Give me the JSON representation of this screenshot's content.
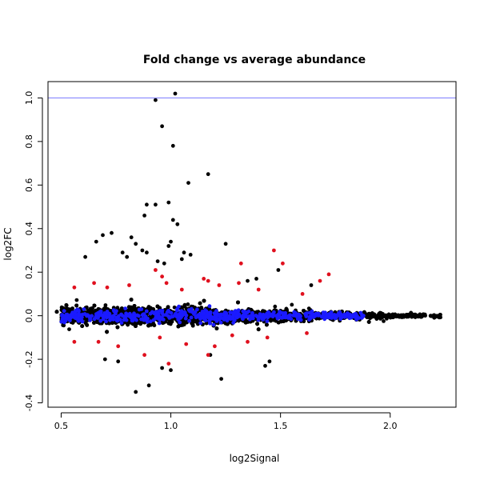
{
  "chart_data": {
    "type": "scatter",
    "title": "Fold change vs average abundance",
    "xlabel": "log2Signal",
    "ylabel": "log2FC",
    "xlim": [
      0.44,
      2.3
    ],
    "ylim": [
      -0.42,
      1.075
    ],
    "xticks": [
      0.5,
      1.0,
      1.5,
      2.0
    ],
    "xtick_labels": [
      "0.5",
      "1.0",
      "1.5",
      "2.0"
    ],
    "yticks": [
      -0.4,
      -0.2,
      0.0,
      0.2,
      0.4,
      0.6,
      0.8,
      1.0
    ],
    "ytick_labels": [
      "-0.4",
      "-0.2",
      "0.0",
      "0.2",
      "0.4",
      "0.6",
      "0.8",
      "1.0"
    ],
    "grid": false,
    "reference_line": {
      "y": 1.0,
      "color": "#7777ff"
    },
    "colors": {
      "background_points": "#000000",
      "highlight_blue": "#1a1aff",
      "highlight_red": "#e0101e"
    },
    "series": [
      {
        "color": "#000000",
        "points": [
          [
            0.93,
            0.99
          ],
          [
            1.02,
            1.02
          ],
          [
            0.96,
            0.87
          ],
          [
            1.01,
            0.78
          ],
          [
            1.17,
            0.65
          ],
          [
            1.08,
            0.61
          ],
          [
            0.99,
            0.52
          ],
          [
            0.89,
            0.51
          ],
          [
            0.93,
            0.51
          ],
          [
            0.88,
            0.46
          ],
          [
            1.01,
            0.44
          ],
          [
            1.03,
            0.42
          ],
          [
            0.73,
            0.38
          ],
          [
            0.69,
            0.37
          ],
          [
            0.82,
            0.36
          ],
          [
            0.66,
            0.34
          ],
          [
            0.84,
            0.33
          ],
          [
            1.0,
            0.34
          ],
          [
            0.99,
            0.32
          ],
          [
            1.25,
            0.33
          ],
          [
            0.89,
            0.29
          ],
          [
            0.87,
            0.3
          ],
          [
            1.06,
            0.29
          ],
          [
            1.09,
            0.28
          ],
          [
            0.61,
            0.27
          ],
          [
            1.05,
            0.26
          ],
          [
            0.94,
            0.25
          ],
          [
            0.97,
            0.24
          ],
          [
            0.78,
            0.29
          ],
          [
            0.8,
            0.27
          ],
          [
            1.23,
            -0.29
          ],
          [
            0.9,
            -0.32
          ],
          [
            0.84,
            -0.35
          ],
          [
            1.45,
            -0.21
          ],
          [
            1.43,
            -0.23
          ],
          [
            0.96,
            -0.24
          ],
          [
            1.0,
            -0.25
          ],
          [
            0.76,
            -0.21
          ],
          [
            0.7,
            -0.2
          ],
          [
            1.18,
            -0.18
          ],
          [
            1.39,
            0.17
          ],
          [
            1.49,
            0.21
          ],
          [
            1.35,
            0.16
          ],
          [
            1.64,
            0.14
          ]
        ]
      },
      {
        "color": "#1a1aff",
        "points": []
      },
      {
        "color": "#e0101e",
        "points": [
          [
            1.47,
            0.3
          ],
          [
            1.51,
            0.24
          ],
          [
            1.32,
            0.24
          ],
          [
            1.72,
            0.19
          ],
          [
            1.68,
            0.16
          ],
          [
            0.93,
            0.21
          ],
          [
            1.17,
            0.16
          ],
          [
            1.15,
            0.17
          ],
          [
            1.22,
            0.14
          ],
          [
            1.31,
            0.15
          ],
          [
            0.98,
            0.15
          ],
          [
            0.96,
            0.18
          ],
          [
            0.65,
            0.15
          ],
          [
            0.71,
            0.13
          ],
          [
            0.56,
            0.13
          ],
          [
            0.81,
            0.14
          ],
          [
            1.05,
            0.12
          ],
          [
            1.4,
            0.12
          ],
          [
            1.6,
            0.1
          ],
          [
            0.88,
            -0.18
          ],
          [
            0.99,
            -0.22
          ],
          [
            1.07,
            -0.13
          ],
          [
            1.2,
            -0.14
          ],
          [
            1.35,
            -0.12
          ],
          [
            0.67,
            -0.12
          ],
          [
            0.56,
            -0.12
          ],
          [
            0.76,
            -0.14
          ],
          [
            1.17,
            -0.18
          ],
          [
            1.44,
            -0.1
          ],
          [
            1.62,
            -0.08
          ],
          [
            0.95,
            -0.1
          ],
          [
            1.28,
            -0.09
          ]
        ]
      }
    ]
  }
}
